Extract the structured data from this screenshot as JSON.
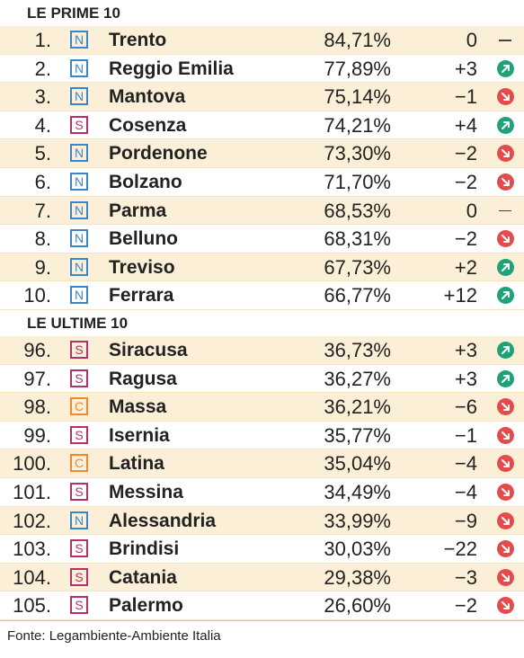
{
  "sections": [
    {
      "title": "LE PRIME 10",
      "rows": [
        {
          "rank": "1.",
          "type": "N",
          "city": "Trento",
          "pct": "84,71%",
          "delta": "0",
          "trend": "flat"
        },
        {
          "rank": "2.",
          "type": "N",
          "city": "Reggio Emilia",
          "pct": "77,89%",
          "delta": "+3",
          "trend": "up"
        },
        {
          "rank": "3.",
          "type": "N",
          "city": "Mantova",
          "pct": "75,14%",
          "delta": "−1",
          "trend": "down"
        },
        {
          "rank": "4.",
          "type": "S",
          "city": "Cosenza",
          "pct": "74,21%",
          "delta": "+4",
          "trend": "up"
        },
        {
          "rank": "5.",
          "type": "N",
          "city": "Pordenone",
          "pct": "73,30%",
          "delta": "−2",
          "trend": "down"
        },
        {
          "rank": "6.",
          "type": "N",
          "city": "Bolzano",
          "pct": "71,70%",
          "delta": "−2",
          "trend": "down"
        },
        {
          "rank": "7.",
          "type": "N",
          "city": "Parma",
          "pct": "68,53%",
          "delta": "0",
          "trend": "flat"
        },
        {
          "rank": "8.",
          "type": "N",
          "city": "Belluno",
          "pct": "68,31%",
          "delta": "−2",
          "trend": "down"
        },
        {
          "rank": "9.",
          "type": "N",
          "city": "Treviso",
          "pct": "67,73%",
          "delta": "+2",
          "trend": "up"
        },
        {
          "rank": "10.",
          "type": "N",
          "city": "Ferrara",
          "pct": "66,77%",
          "delta": "+12",
          "trend": "up"
        }
      ]
    },
    {
      "title": "LE ULTIME 10",
      "rows": [
        {
          "rank": "96.",
          "type": "S",
          "city": "Siracusa",
          "pct": "36,73%",
          "delta": "+3",
          "trend": "up"
        },
        {
          "rank": "97.",
          "type": "S",
          "city": "Ragusa",
          "pct": "36,27%",
          "delta": "+3",
          "trend": "up"
        },
        {
          "rank": "98.",
          "type": "C",
          "city": "Massa",
          "pct": "36,21%",
          "delta": "−6",
          "trend": "down"
        },
        {
          "rank": "99.",
          "type": "S",
          "city": "Isernia",
          "pct": "35,77%",
          "delta": "−1",
          "trend": "down"
        },
        {
          "rank": "100.",
          "type": "C",
          "city": "Latina",
          "pct": "35,04%",
          "delta": "−4",
          "trend": "down"
        },
        {
          "rank": "101.",
          "type": "S",
          "city": "Messina",
          "pct": "34,49%",
          "delta": "−4",
          "trend": "down"
        },
        {
          "rank": "102.",
          "type": "N",
          "city": "Alessandria",
          "pct": "33,99%",
          "delta": "−9",
          "trend": "down"
        },
        {
          "rank": "103.",
          "type": "S",
          "city": "Brindisi",
          "pct": "30,03%",
          "delta": "−22",
          "trend": "down"
        },
        {
          "rank": "104.",
          "type": "S",
          "city": "Catania",
          "pct": "29,38%",
          "delta": "−3",
          "trend": "down"
        },
        {
          "rank": "105.",
          "type": "S",
          "city": "Palermo",
          "pct": "26,60%",
          "delta": "−2",
          "trend": "down"
        }
      ]
    }
  ],
  "source": "Fonte: Legambiente-Ambiente Italia",
  "colors": {
    "north": "#3a86c9",
    "south": "#b5316b",
    "center": "#ee8a2e",
    "up": "#21a17a",
    "down": "#e54b4b",
    "row_alt": "#fcefd8"
  },
  "icons": {
    "up": "arrow-up-right-icon",
    "down": "arrow-down-right-icon",
    "flat": "dash-icon"
  }
}
